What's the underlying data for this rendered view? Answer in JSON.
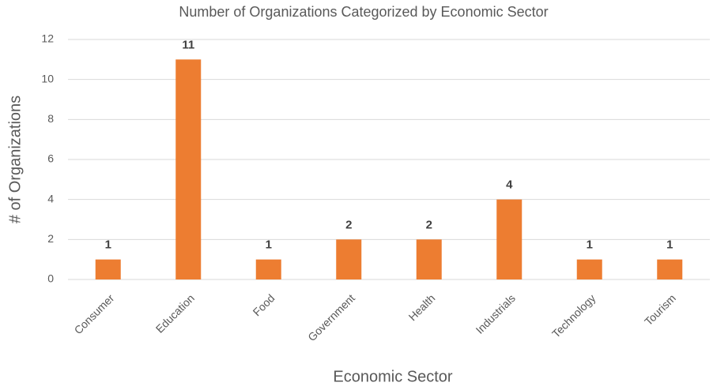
{
  "chart_data": {
    "type": "bar",
    "title": "Number of Organizations Categorized by Economic Sector",
    "x_label": "Economic Sector",
    "y_label": "# of Organizations",
    "categories": [
      "Consumer",
      "Education",
      "Food",
      "Government",
      "Health",
      "Industrials",
      "Technology",
      "Tourism"
    ],
    "values": [
      1,
      11,
      1,
      2,
      2,
      4,
      1,
      1
    ],
    "color": "#ed7d31",
    "ylim": [
      0,
      12
    ],
    "yticks": [
      0,
      2,
      4,
      6,
      8,
      10,
      12
    ],
    "grid": true,
    "data_labels": true
  }
}
